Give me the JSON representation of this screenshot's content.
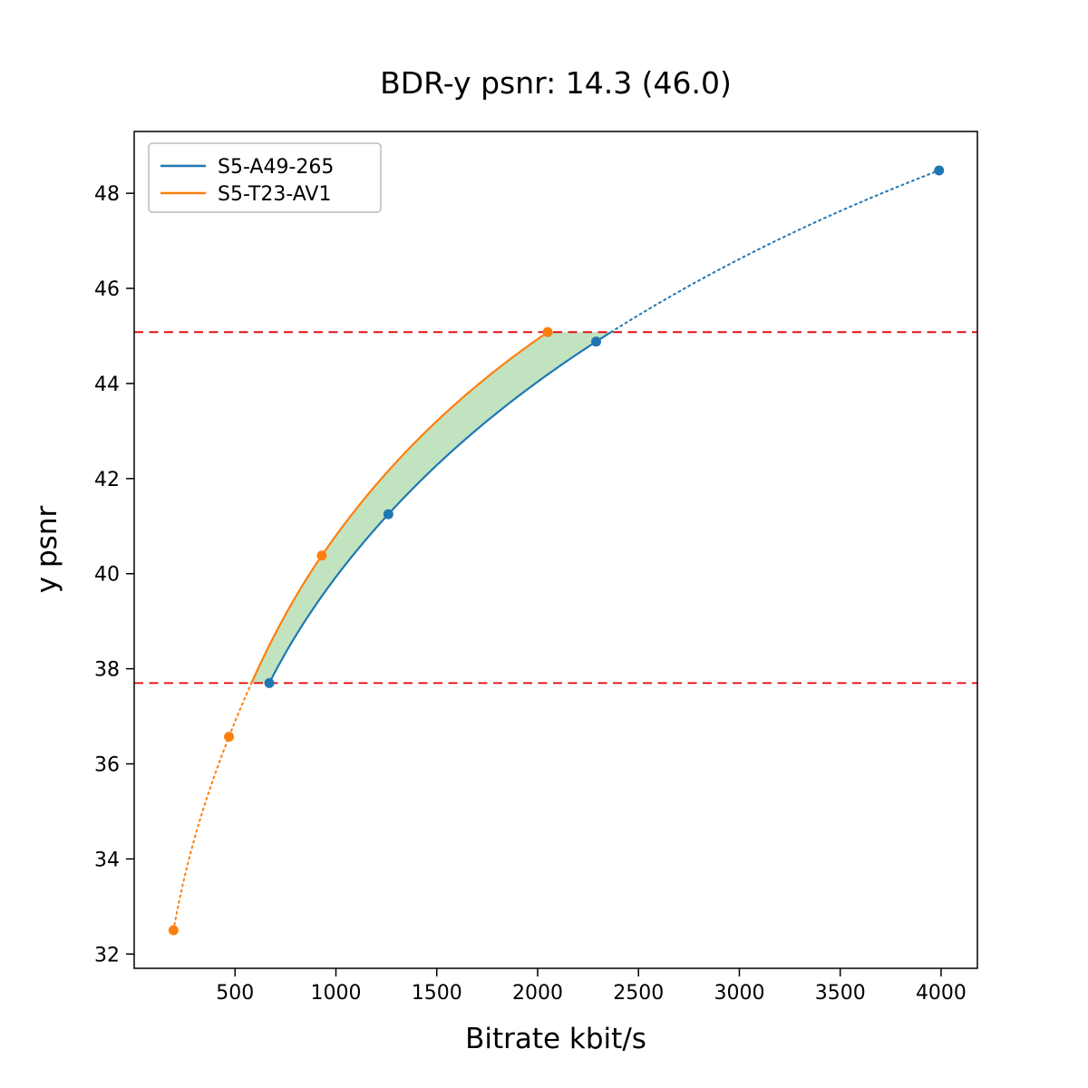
{
  "chart_data": {
    "type": "line",
    "title": "BDR-y psnr: 14.3 (46.0)",
    "xlabel": "Bitrate kbit/s",
    "ylabel": "y psnr",
    "xlim": [
      0,
      4180
    ],
    "ylim": [
      31.7,
      49.3
    ],
    "xticks": [
      500,
      1000,
      1500,
      2000,
      2500,
      3000,
      3500,
      4000
    ],
    "yticks": [
      32,
      34,
      36,
      38,
      40,
      42,
      44,
      46,
      48
    ],
    "grid": false,
    "series": [
      {
        "name": "S5-A49-265",
        "color": "#1f77b4",
        "x": [
          670,
          1260,
          2290,
          3990
        ],
        "y": [
          37.7,
          41.25,
          44.88,
          48.48
        ]
      },
      {
        "name": "S5-T23-AV1",
        "color": "#ff7f0e",
        "x": [
          195,
          470,
          930,
          2050
        ],
        "y": [
          32.5,
          36.57,
          40.38,
          45.08
        ]
      }
    ],
    "overlap_lines": {
      "color": "#e50000",
      "lower": 37.7,
      "upper": 45.08,
      "style": "dashed"
    },
    "fill_between": {
      "color": "#4daf4a",
      "opacity": 0.35,
      "description": "green shaded BD-rate area between the two RD curves within the overlap PSNR range"
    },
    "legend": {
      "position": "upper left",
      "entries": [
        "S5-A49-265",
        "S5-T23-AV1"
      ]
    }
  }
}
